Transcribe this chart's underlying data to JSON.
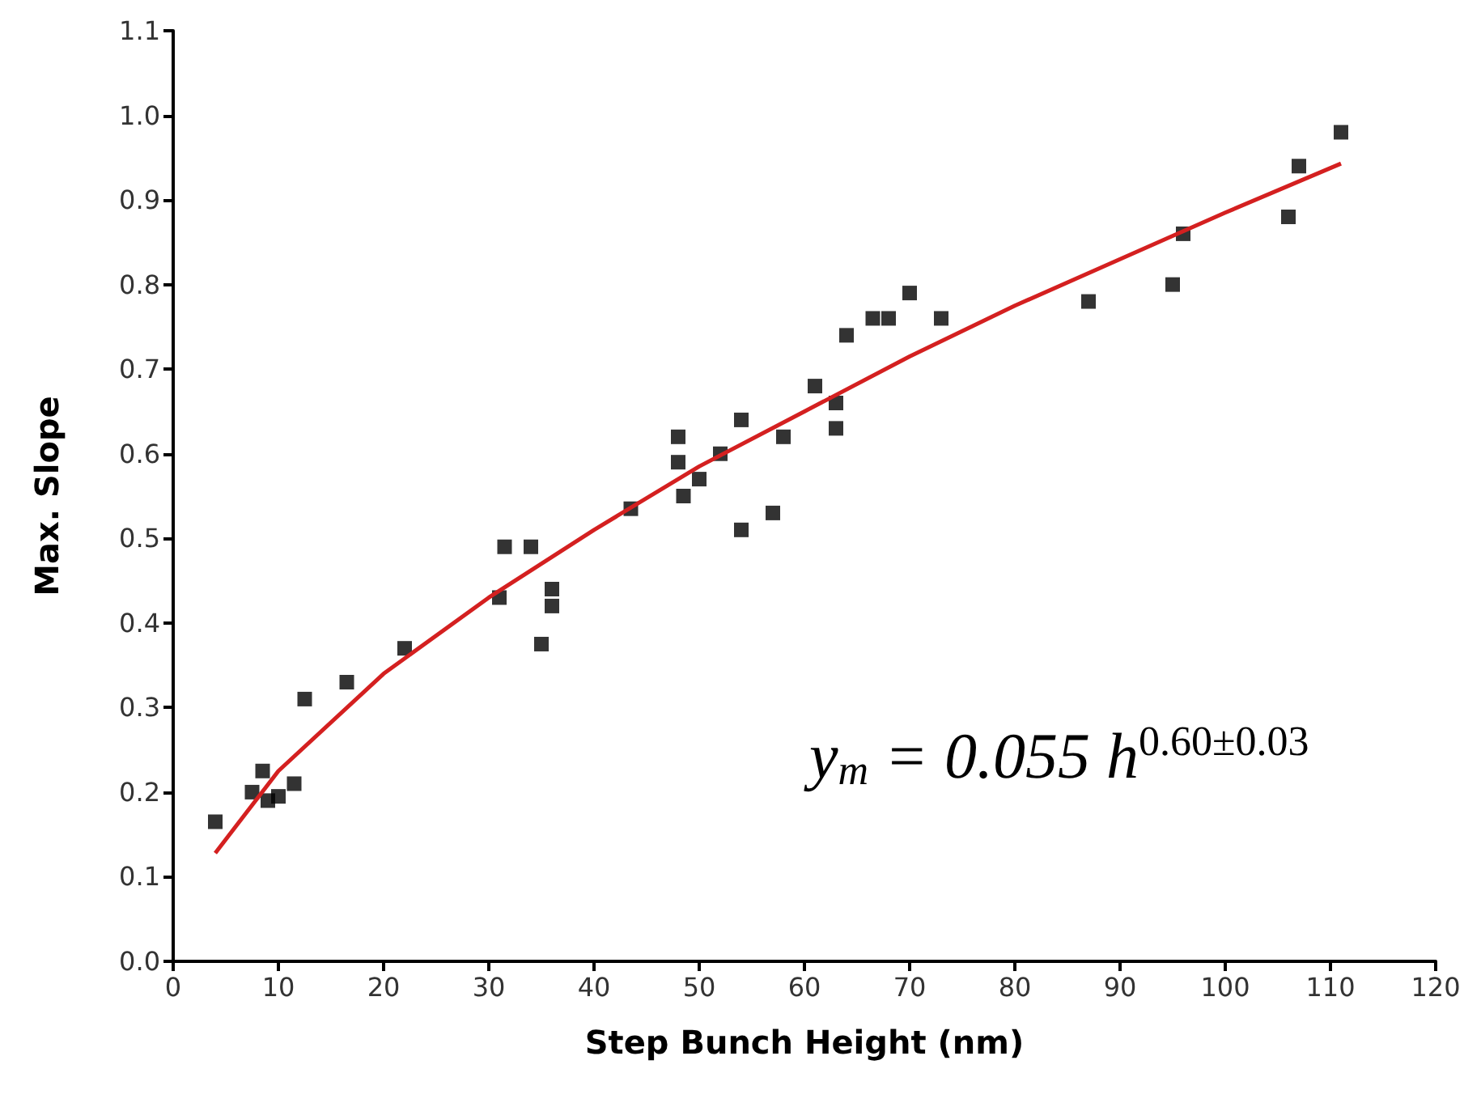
{
  "chart_data": {
    "type": "scatter",
    "xlabel": "Step Bunch Height (nm)",
    "ylabel": "Max. Slope",
    "xlim": [
      0,
      120
    ],
    "xticks": [
      0,
      10,
      20,
      30,
      40,
      50,
      60,
      70,
      80,
      90,
      100,
      110,
      120
    ],
    "ylim": [
      0,
      1.1
    ],
    "yticks": [
      {
        "value": 0,
        "label": "0.0"
      },
      {
        "value": 0.1,
        "label": "0.1"
      },
      {
        "value": 0.2,
        "label": "0.2"
      },
      {
        "value": 0.3,
        "label": "0.3"
      },
      {
        "value": 0.4,
        "label": "0.4"
      },
      {
        "value": 0.5,
        "label": "0.5"
      },
      {
        "value": 0.6,
        "label": "0.6"
      },
      {
        "value": 0.7,
        "label": "0.7"
      },
      {
        "value": 0.8,
        "label": "0.8"
      },
      {
        "value": 0.9,
        "label": "0.9"
      },
      {
        "value": 1.0,
        "label": "1.0"
      },
      {
        "value": 1.1,
        "label": "1.1"
      }
    ],
    "grid": false,
    "marker": "square",
    "series": [
      {
        "color": "#000000",
        "x": [
          4,
          7.5,
          8.5,
          9,
          10,
          11.5,
          12.5,
          16.5,
          22,
          31,
          31.5,
          34,
          35,
          36,
          36,
          43.5,
          48,
          48,
          48.5,
          50,
          52,
          54,
          54,
          57,
          58,
          61,
          63,
          63,
          64,
          66.5,
          68,
          70,
          73,
          87,
          95,
          96,
          106,
          107,
          111
        ],
        "values": [
          0.165,
          0.2,
          0.225,
          0.19,
          0.195,
          0.21,
          0.31,
          0.33,
          0.37,
          0.43,
          0.49,
          0.49,
          0.375,
          0.44,
          0.42,
          0.535,
          0.59,
          0.62,
          0.55,
          0.57,
          0.6,
          0.64,
          0.51,
          0.53,
          0.62,
          0.68,
          0.66,
          0.63,
          0.74,
          0.76,
          0.76,
          0.79,
          0.76,
          0.78,
          0.8,
          0.86,
          0.88,
          0.94,
          0.98
        ]
      },
      {
        "type": "line",
        "color": "#d42020",
        "marker": "none",
        "x": [
          4,
          10,
          20,
          30,
          40,
          50,
          60,
          70,
          80,
          90,
          100,
          111
        ],
        "values": [
          0.128,
          0.225,
          0.34,
          0.43,
          0.51,
          0.585,
          0.65,
          0.715,
          0.775,
          0.83,
          0.885,
          0.943
        ]
      }
    ],
    "annotations": [
      "y$_{m}$ = 0.055 h$^{0.60±0.03}$"
    ]
  }
}
